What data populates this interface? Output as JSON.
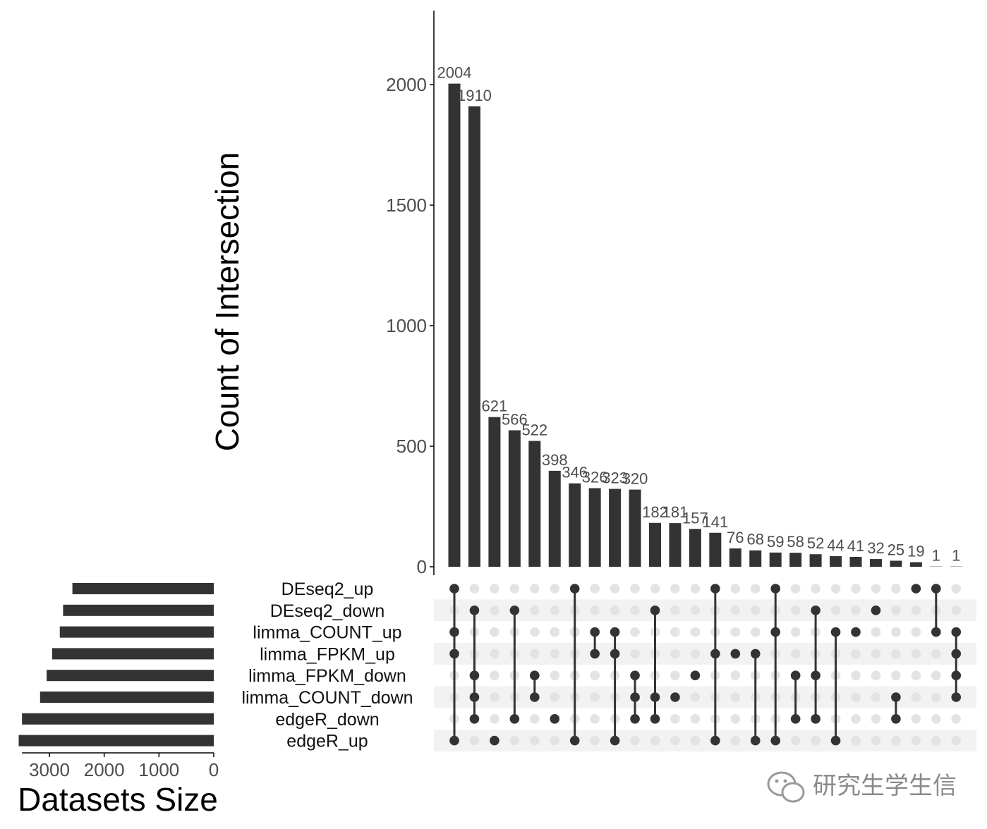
{
  "chart_data": {
    "type": "upset",
    "ylabel": "Count of Intersection",
    "ylim": [
      0,
      2300
    ],
    "y_ticks": [
      0,
      500,
      1000,
      1500,
      2000
    ],
    "sets": [
      "DEseq2_up",
      "DEseq2_down",
      "limma_COUNT_up",
      "limma_FPKM_up",
      "limma_FPKM_down",
      "limma_COUNT_down",
      "edgeR_down",
      "edgeR_up"
    ],
    "set_sizes_label": "Datasets Size",
    "set_sizes": [
      2580,
      2750,
      2810,
      2950,
      3050,
      3170,
      3500,
      3560
    ],
    "set_size_ticks": [
      3000,
      2000,
      1000,
      0
    ],
    "set_size_xlim": [
      0,
      3500
    ],
    "bar_value_labels": [
      "2004",
      "1910",
      "621",
      "566",
      "522",
      "398",
      "346",
      "326",
      "323",
      "320",
      "182",
      "181",
      "157",
      "141",
      "76",
      "68",
      "59",
      "58",
      "52",
      "44",
      "41",
      "32",
      "25",
      "19",
      "1",
      "1"
    ],
    "intersections": [
      {
        "value": 2004,
        "members": [
          0,
          2,
          3,
          7
        ]
      },
      {
        "value": 1910,
        "members": [
          1,
          4,
          5,
          6
        ]
      },
      {
        "value": 621,
        "members": [
          7
        ]
      },
      {
        "value": 566,
        "members": [
          1,
          6
        ]
      },
      {
        "value": 522,
        "members": [
          4,
          5
        ]
      },
      {
        "value": 398,
        "members": [
          6
        ]
      },
      {
        "value": 346,
        "members": [
          0,
          7
        ]
      },
      {
        "value": 326,
        "members": [
          2,
          3
        ]
      },
      {
        "value": 323,
        "members": [
          2,
          3,
          7
        ]
      },
      {
        "value": 320,
        "members": [
          4,
          5,
          6
        ]
      },
      {
        "value": 182,
        "members": [
          1,
          5,
          6
        ]
      },
      {
        "value": 181,
        "members": [
          5
        ]
      },
      {
        "value": 157,
        "members": [
          4
        ]
      },
      {
        "value": 141,
        "members": [
          0,
          3,
          7
        ]
      },
      {
        "value": 76,
        "members": [
          3
        ]
      },
      {
        "value": 68,
        "members": [
          3,
          7
        ]
      },
      {
        "value": 59,
        "members": [
          0,
          2,
          7
        ]
      },
      {
        "value": 58,
        "members": [
          4,
          6
        ]
      },
      {
        "value": 52,
        "members": [
          1,
          4,
          6
        ]
      },
      {
        "value": 44,
        "members": [
          2,
          7
        ]
      },
      {
        "value": 41,
        "members": [
          2
        ]
      },
      {
        "value": 32,
        "members": [
          1
        ]
      },
      {
        "value": 25,
        "members": [
          5,
          6
        ]
      },
      {
        "value": 19,
        "members": [
          0
        ]
      },
      {
        "value": 1,
        "members": [
          0,
          2
        ]
      },
      {
        "value": 1,
        "members": [
          2,
          3,
          4,
          5
        ]
      }
    ]
  },
  "watermark": {
    "text": "研究生学生信",
    "icon": "wechat-icon"
  },
  "colors": {
    "bar": "#333333",
    "dot_active": "#333333",
    "dot_inactive": "#e3e3e3",
    "stripe": "#f2f2f2",
    "axis": "#000000",
    "tick_text": "#4d4d4d"
  }
}
